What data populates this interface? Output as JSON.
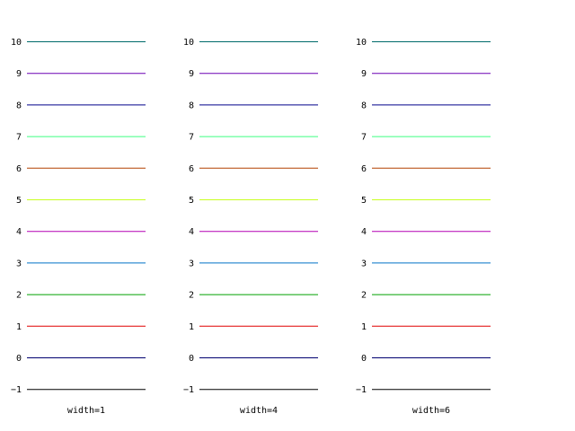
{
  "chart_data": [
    {
      "type": "line",
      "title": "",
      "xlabel": "width=1",
      "ylabel": "",
      "linewidth": 1,
      "yticks": [
        "10",
        "9",
        "8",
        "7",
        "6",
        "5",
        "4",
        "3",
        "2",
        "1",
        "0",
        "−1"
      ],
      "series": [
        {
          "y": 10,
          "color": "#006b6b"
        },
        {
          "y": 9,
          "color": "#6b00b4"
        },
        {
          "y": 8,
          "color": "#00008b"
        },
        {
          "y": 7,
          "color": "#3cff80"
        },
        {
          "y": 6,
          "color": "#b44000"
        },
        {
          "y": 5,
          "color": "#c8ff20"
        },
        {
          "y": 4,
          "color": "#b400b4"
        },
        {
          "y": 3,
          "color": "#0070c8"
        },
        {
          "y": 2,
          "color": "#00a000"
        },
        {
          "y": 1,
          "color": "#e00000"
        },
        {
          "y": 0,
          "color": "#000070"
        },
        {
          "y": -1,
          "color": "#000000"
        }
      ]
    },
    {
      "type": "line",
      "title": "",
      "xlabel": "width=4",
      "ylabel": "",
      "linewidth": 4,
      "yticks": [
        "10",
        "9",
        "8",
        "7",
        "6",
        "5",
        "4",
        "3",
        "2",
        "1",
        "0",
        "−1"
      ],
      "series": [
        {
          "y": 10,
          "color": "#006b6b"
        },
        {
          "y": 9,
          "color": "#6b00b4"
        },
        {
          "y": 8,
          "color": "#00008b"
        },
        {
          "y": 7,
          "color": "#3cff80"
        },
        {
          "y": 6,
          "color": "#b44000"
        },
        {
          "y": 5,
          "color": "#c8ff20"
        },
        {
          "y": 4,
          "color": "#b400b4"
        },
        {
          "y": 3,
          "color": "#0070c8"
        },
        {
          "y": 2,
          "color": "#00a000"
        },
        {
          "y": 1,
          "color": "#e00000"
        },
        {
          "y": 0,
          "color": "#000070"
        },
        {
          "y": -1,
          "color": "#000000"
        }
      ]
    },
    {
      "type": "line",
      "title": "",
      "xlabel": "width=6",
      "ylabel": "",
      "linewidth": 6,
      "yticks": [
        "10",
        "9",
        "8",
        "7",
        "6",
        "5",
        "4",
        "3",
        "2",
        "1",
        "0",
        "−1"
      ],
      "series": [
        {
          "y": 10,
          "color": "#006b6b"
        },
        {
          "y": 9,
          "color": "#6b00b4"
        },
        {
          "y": 8,
          "color": "#00008b"
        },
        {
          "y": 7,
          "color": "#3cff80"
        },
        {
          "y": 6,
          "color": "#b44000"
        },
        {
          "y": 5,
          "color": "#c8ff20"
        },
        {
          "y": 4,
          "color": "#b400b4"
        },
        {
          "y": 3,
          "color": "#0070c8"
        },
        {
          "y": 2,
          "color": "#00a000"
        },
        {
          "y": 1,
          "color": "#e00000"
        },
        {
          "y": 0,
          "color": "#000070"
        },
        {
          "y": -1,
          "color": "#000000"
        }
      ]
    }
  ]
}
